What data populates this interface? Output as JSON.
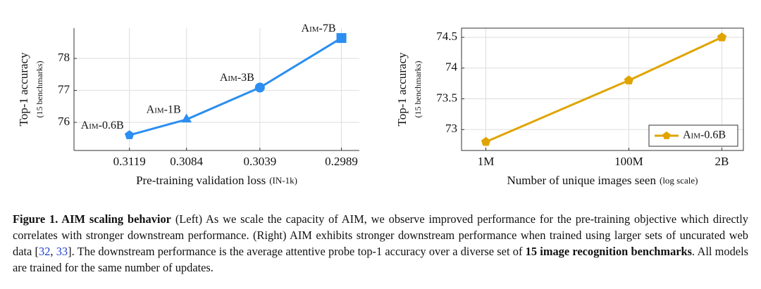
{
  "chart_data": [
    {
      "type": "line",
      "x": [
        0.3119,
        0.3084,
        0.3039,
        0.2989
      ],
      "xlim": [
        0.3153,
        0.2978
      ],
      "xticks": [
        0.3119,
        0.3084,
        0.3039,
        0.2989
      ],
      "ylim": [
        75.12,
        78.95
      ],
      "yticks": [
        76,
        77,
        78
      ],
      "xlabel": "Pre-training validation loss",
      "xlabel_note": "(IN-1k)",
      "ylabel": "Top-1 accuracy",
      "ylabel_note": "(15 benchmarks)",
      "grid": true,
      "box": false,
      "series": [
        {
          "color": "#2b8ef0",
          "values": [
            75.6,
            76.09,
            77.09,
            78.64
          ],
          "markers": [
            "pentagon",
            "triangle",
            "circle",
            "square"
          ],
          "point_labels": [
            "Aim-0.6B",
            "Aim-1B",
            "Aim-3B",
            "Aim-7B"
          ]
        }
      ]
    },
    {
      "type": "line",
      "x": [
        1000000,
        100000000,
        2000000000
      ],
      "xscale": "log",
      "xlim": [
        457000,
        4000000000
      ],
      "xticks": [
        {
          "value": 1000000,
          "label": "1M"
        },
        {
          "value": 100000000,
          "label": "100M"
        },
        {
          "value": 2000000000,
          "label": "2B"
        }
      ],
      "ylim": [
        72.66,
        74.65
      ],
      "yticks": [
        73,
        73.5,
        74,
        74.5
      ],
      "xlabel": "Number of unique images seen",
      "xlabel_note": "(log scale)",
      "ylabel": "Top-1 accuracy",
      "ylabel_note": "(15 benchmarks)",
      "grid": true,
      "box": true,
      "legend": "lower right",
      "series": [
        {
          "name": "Aim-0.6B",
          "color": "#e0a400",
          "values": [
            72.8,
            73.8,
            74.5
          ],
          "markers": [
            "pentagon",
            "pentagon",
            "pentagon"
          ]
        }
      ]
    }
  ],
  "caption": {
    "runs": [
      {
        "text": "Figure 1. AIM scaling behavior",
        "bold": true
      },
      {
        "text": " (Left) As we scale the capacity of AIM, we observe improved performance for the pre-training objective which directly correlates with stronger downstream performance. (Right) AIM exhibits stronger downstream performance when trained using larger sets of uncurated web data ["
      },
      {
        "text": "32",
        "color": "#1f3fd0"
      },
      {
        "text": ", "
      },
      {
        "text": "33",
        "color": "#1f3fd0"
      },
      {
        "text": "]. The downstream performance is the average attentive probe top-1 accuracy over a diverse set of "
      },
      {
        "text": "15 image recognition benchmarks",
        "bold": true
      },
      {
        "text": ". All models are trained for the same number of updates."
      }
    ]
  }
}
